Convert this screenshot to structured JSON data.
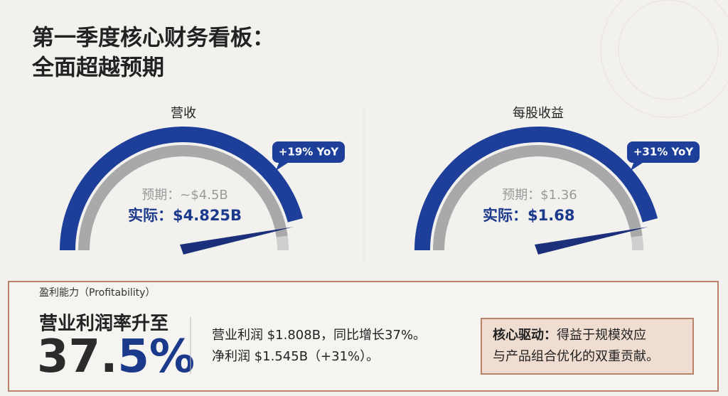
{
  "header": {
    "title_line1": "第一季度核心财务看板：",
    "title_line2": "全面超越预期"
  },
  "gauges": [
    {
      "label": "营收",
      "badge": "+19% YoY",
      "expected": "预期：~$4.5B",
      "actual_label": "实际：",
      "actual": "$4.825B"
    },
    {
      "label": "每股收益",
      "badge": "+31% YoY",
      "expected": "预期：$1.36",
      "actual_label": "实际：",
      "actual": "$1.68"
    }
  ],
  "profitability": {
    "section_label": "盈利能力（Profitability）",
    "headline": "营业利润率升至",
    "big_value_main": "37.",
    "big_value_accent": "5%",
    "details": [
      "营业利润 $1.808B，同比增长37%。",
      "净利润 $1.545B（+31%）。"
    ],
    "driver_label": "核心驱动：",
    "driver_text_line1": "得益于规模效应",
    "driver_text_line2": "与产品组合优化的双重贡献。"
  }
}
